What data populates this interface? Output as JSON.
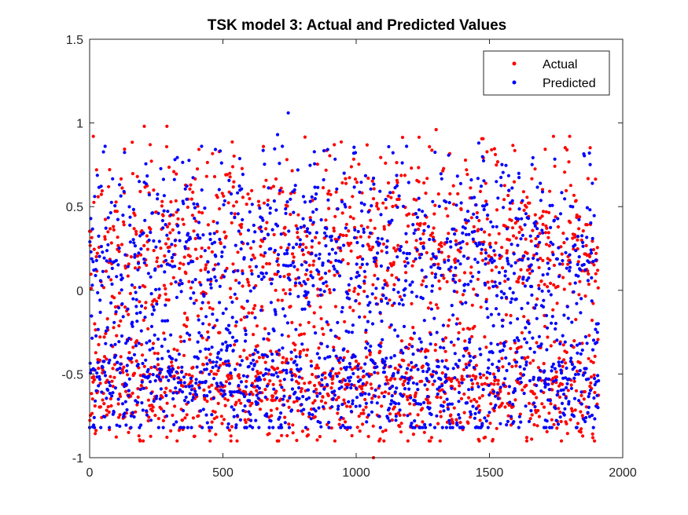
{
  "chart_data": {
    "type": "scatter",
    "title": "TSK model 3: Actual and Predicted Values",
    "xlabel": "",
    "ylabel": "",
    "xlim": [
      0,
      2000
    ],
    "ylim": [
      -1,
      1.5
    ],
    "xticks": [
      "0",
      "500",
      "1000",
      "1500",
      "2000"
    ],
    "yticks": [
      "-1",
      "-0.5",
      "0",
      "0.5",
      "1",
      "1.5"
    ],
    "grid": false,
    "legend_position": "top-right",
    "n_points": 1910,
    "series": [
      {
        "name": "Actual",
        "color": "#ff0000",
        "marker": "dot",
        "distribution": "dense cloud between about -0.9 and 0.95, concentrated near -0.6 and 0.25",
        "notable_values": [
          {
            "x": 205,
            "y": 0.98
          },
          {
            "x": 290,
            "y": 0.98
          },
          {
            "x": 1300,
            "y": 0.96
          },
          {
            "x": 1065,
            "y": -1.0
          },
          {
            "x": 530,
            "y": -0.87
          },
          {
            "x": 1640,
            "y": -0.88
          }
        ]
      },
      {
        "name": "Predicted",
        "color": "#0000ff",
        "marker": "dot",
        "distribution": "dense cloud between about -0.8 and 0.9, concentrated near -0.55 and 0.2",
        "notable_values": [
          {
            "x": 745,
            "y": 1.06
          },
          {
            "x": 705,
            "y": 0.93
          },
          {
            "x": 1460,
            "y": 0.88
          },
          {
            "x": 1875,
            "y": 0.82
          },
          {
            "x": 1610,
            "y": -0.82
          }
        ]
      }
    ]
  }
}
